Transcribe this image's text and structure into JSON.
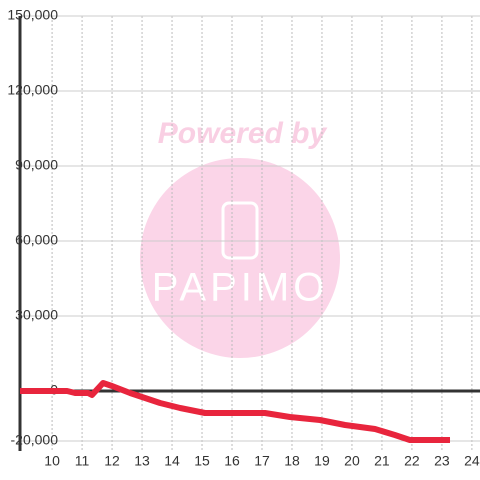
{
  "chart_data": {
    "type": "line",
    "watermark": [
      "Powered by",
      "PAPIMO"
    ],
    "x": [
      8.93,
      10.5,
      10.77,
      11.2,
      11.33,
      11.7,
      12.0,
      12.6,
      13.0,
      13.6,
      14.27,
      15.1,
      17.1,
      17.93,
      18.93,
      19.77,
      20.77,
      21.43,
      21.93,
      23.27
    ],
    "series": [
      {
        "color": "#e8253d",
        "values": [
          0,
          0,
          -800,
          -800,
          -1600,
          3200,
          2000,
          -800,
          -2400,
          -4800,
          -6800,
          -8800,
          -8800,
          -10400,
          -11600,
          -13600,
          -15200,
          -17600,
          -19600,
          -19600
        ]
      }
    ],
    "xlim": [
      8.93,
      24.27
    ],
    "xticks": [
      10,
      11,
      12,
      13,
      14,
      15,
      16,
      17,
      18,
      19,
      20,
      21,
      22,
      23,
      24
    ],
    "ylim": [
      -24000,
      150000
    ],
    "yticks": [
      {
        "value": -20000,
        "label": "-20,000"
      },
      0,
      {
        "value": 30000,
        "label": "30,000"
      },
      {
        "value": 60000,
        "label": "60,000"
      },
      {
        "value": 90000,
        "label": "90,000"
      },
      {
        "value": 120000,
        "label": "120,000"
      },
      {
        "value": 150000,
        "label": "150,000"
      }
    ],
    "grid": true
  }
}
